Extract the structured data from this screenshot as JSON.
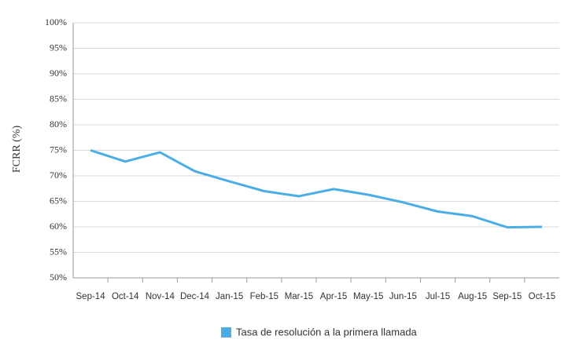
{
  "chart_data": {
    "type": "line",
    "y_label": "FCRR (%)",
    "categories": [
      "Sep-14",
      "Oct-14",
      "Nov-14",
      "Dec-14",
      "Jan-15",
      "Feb-15",
      "Mar-15",
      "Apr-15",
      "May-15",
      "Jun-15",
      "Jul-15",
      "Aug-15",
      "Sep-15",
      "Oct-15"
    ],
    "series": [
      {
        "name": "Tasa de resolución a la primera llamada",
        "color": "#4aaee5",
        "values": [
          75.0,
          72.8,
          74.6,
          70.9,
          68.9,
          67.0,
          66.0,
          67.4,
          66.3,
          64.8,
          63.0,
          62.1,
          59.9,
          60.0
        ]
      }
    ],
    "ylim": [
      50,
      100
    ],
    "yticks": [
      {
        "value": 50,
        "label": "50%"
      },
      {
        "value": 55,
        "label": "55%"
      },
      {
        "value": 60,
        "label": "60%"
      },
      {
        "value": 65,
        "label": "65%"
      },
      {
        "value": 70,
        "label": "70%"
      },
      {
        "value": 75,
        "label": "75%"
      },
      {
        "value": 80,
        "label": "80%"
      },
      {
        "value": 85,
        "label": "85%"
      },
      {
        "value": 90,
        "label": "90%"
      },
      {
        "value": 95,
        "label": "95%"
      },
      {
        "value": 100,
        "label": "100%"
      }
    ],
    "grid": true,
    "legend": "bottom"
  }
}
